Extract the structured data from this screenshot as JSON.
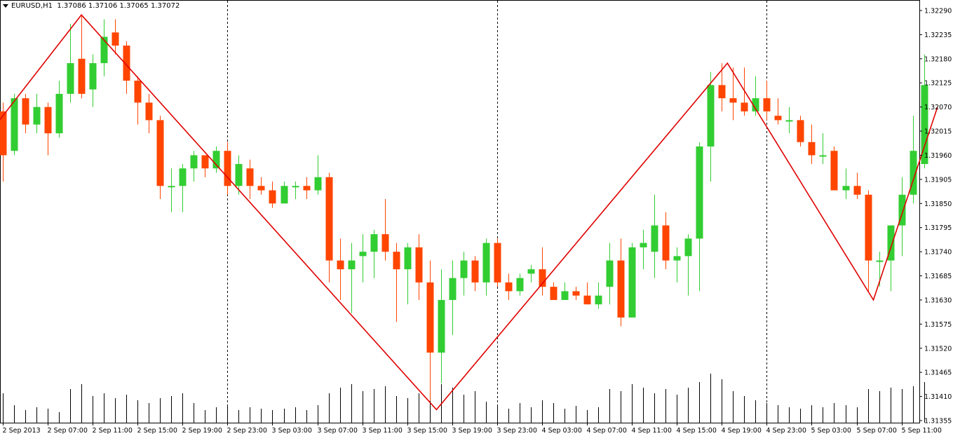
{
  "window": {
    "symbol_line": "EURUSD,H1",
    "ohlc_line": "1.37086 1.37106 1.37065 1.37072"
  },
  "colors": {
    "bull": "#32CD32",
    "bear": "#FF4500",
    "zigzag": "#E00000",
    "grid_separator": "#000000",
    "volume": "#000000"
  },
  "chart_data": {
    "type": "candlestick",
    "title": "EURUSD,H1",
    "y_axis": {
      "ylim": [
        1.3133,
        1.3232
      ],
      "tick_labels": [
        "1.32290",
        "1.32235",
        "1.32180",
        "1.32125",
        "1.32070",
        "1.32015",
        "1.31960",
        "1.31905",
        "1.31850",
        "1.31795",
        "1.31740",
        "1.31685",
        "1.31630",
        "1.31575",
        "1.31520",
        "1.31465",
        "1.31410",
        "1.31355"
      ]
    },
    "x_axis": {
      "tick_labels": [
        "2 Sep 2013",
        "2 Sep 07:00",
        "2 Sep 11:00",
        "2 Sep 15:00",
        "2 Sep 19:00",
        "2 Sep 23:00",
        "3 Sep 03:00",
        "3 Sep 07:00",
        "3 Sep 11:00",
        "3 Sep 15:00",
        "3 Sep 19:00",
        "3 Sep 23:00",
        "4 Sep 03:00",
        "4 Sep 07:00",
        "4 Sep 11:00",
        "4 Sep 15:00",
        "4 Sep 19:00",
        "4 Sep 23:00",
        "5 Sep 03:00",
        "5 Sep 07:00",
        "5 Sep 11:00"
      ]
    },
    "day_separators": [
      "2 Sep 23:00",
      "3 Sep 23:00",
      "4 Sep 23:00"
    ],
    "candles": [
      {
        "o": 1.3206,
        "h": 1.3208,
        "l": 1.319,
        "c": 1.3196
      },
      {
        "o": 1.3197,
        "h": 1.321,
        "l": 1.3196,
        "c": 1.3209
      },
      {
        "o": 1.3209,
        "h": 1.321,
        "l": 1.3201,
        "c": 1.3203
      },
      {
        "o": 1.3203,
        "h": 1.321,
        "l": 1.3201,
        "c": 1.3207
      },
      {
        "o": 1.3207,
        "h": 1.3208,
        "l": 1.3196,
        "c": 1.3201
      },
      {
        "o": 1.3201,
        "h": 1.3213,
        "l": 1.32,
        "c": 1.321
      },
      {
        "o": 1.321,
        "h": 1.3226,
        "l": 1.3208,
        "c": 1.3217
      },
      {
        "o": 1.3218,
        "h": 1.3228,
        "l": 1.3209,
        "c": 1.321
      },
      {
        "o": 1.3211,
        "h": 1.3219,
        "l": 1.3207,
        "c": 1.3217
      },
      {
        "o": 1.3217,
        "h": 1.3227,
        "l": 1.3214,
        "c": 1.3223
      },
      {
        "o": 1.3224,
        "h": 1.3227,
        "l": 1.3219,
        "c": 1.3221
      },
      {
        "o": 1.3221,
        "h": 1.3222,
        "l": 1.321,
        "c": 1.3213
      },
      {
        "o": 1.3213,
        "h": 1.3214,
        "l": 1.3203,
        "c": 1.3208
      },
      {
        "o": 1.3208,
        "h": 1.321,
        "l": 1.3201,
        "c": 1.3204
      },
      {
        "o": 1.3204,
        "h": 1.3205,
        "l": 1.3186,
        "c": 1.3189
      },
      {
        "o": 1.3189,
        "h": 1.3193,
        "l": 1.3183,
        "c": 1.3189
      },
      {
        "o": 1.3189,
        "h": 1.3194,
        "l": 1.3183,
        "c": 1.3193
      },
      {
        "o": 1.3193,
        "h": 1.3197,
        "l": 1.319,
        "c": 1.3196
      },
      {
        "o": 1.3196,
        "h": 1.3196,
        "l": 1.3191,
        "c": 1.3193
      },
      {
        "o": 1.3193,
        "h": 1.3198,
        "l": 1.3192,
        "c": 1.3197
      },
      {
        "o": 1.3197,
        "h": 1.3199,
        "l": 1.3187,
        "c": 1.3189
      },
      {
        "o": 1.3189,
        "h": 1.3196,
        "l": 1.3187,
        "c": 1.3194
      },
      {
        "o": 1.3193,
        "h": 1.3195,
        "l": 1.3186,
        "c": 1.3189
      },
      {
        "o": 1.3189,
        "h": 1.3191,
        "l": 1.3187,
        "c": 1.3188
      },
      {
        "o": 1.3188,
        "h": 1.319,
        "l": 1.3184,
        "c": 1.3185
      },
      {
        "o": 1.3185,
        "h": 1.319,
        "l": 1.3185,
        "c": 1.3189
      },
      {
        "o": 1.3189,
        "h": 1.319,
        "l": 1.3186,
        "c": 1.3189
      },
      {
        "o": 1.3189,
        "h": 1.3191,
        "l": 1.3186,
        "c": 1.3188
      },
      {
        "o": 1.3188,
        "h": 1.3196,
        "l": 1.3187,
        "c": 1.3191
      },
      {
        "o": 1.3191,
        "h": 1.3192,
        "l": 1.3167,
        "c": 1.3172
      },
      {
        "o": 1.3172,
        "h": 1.3177,
        "l": 1.3163,
        "c": 1.317
      },
      {
        "o": 1.317,
        "h": 1.3176,
        "l": 1.316,
        "c": 1.3172
      },
      {
        "o": 1.3173,
        "h": 1.3178,
        "l": 1.3167,
        "c": 1.3174
      },
      {
        "o": 1.3174,
        "h": 1.3179,
        "l": 1.3168,
        "c": 1.3178
      },
      {
        "o": 1.3178,
        "h": 1.3186,
        "l": 1.3172,
        "c": 1.3174
      },
      {
        "o": 1.3174,
        "h": 1.3176,
        "l": 1.3158,
        "c": 1.317
      },
      {
        "o": 1.317,
        "h": 1.3176,
        "l": 1.3162,
        "c": 1.3175
      },
      {
        "o": 1.3175,
        "h": 1.3178,
        "l": 1.3163,
        "c": 1.3167
      },
      {
        "o": 1.3167,
        "h": 1.3172,
        "l": 1.314,
        "c": 1.3151
      },
      {
        "o": 1.3151,
        "h": 1.317,
        "l": 1.3144,
        "c": 1.3163
      },
      {
        "o": 1.3163,
        "h": 1.3172,
        "l": 1.3155,
        "c": 1.3168
      },
      {
        "o": 1.3168,
        "h": 1.3174,
        "l": 1.3164,
        "c": 1.3172
      },
      {
        "o": 1.3172,
        "h": 1.3173,
        "l": 1.3165,
        "c": 1.3167
      },
      {
        "o": 1.3167,
        "h": 1.3177,
        "l": 1.3164,
        "c": 1.3176
      },
      {
        "o": 1.3176,
        "h": 1.3177,
        "l": 1.3166,
        "c": 1.3167
      },
      {
        "o": 1.3167,
        "h": 1.3169,
        "l": 1.3163,
        "c": 1.3165
      },
      {
        "o": 1.3165,
        "h": 1.3169,
        "l": 1.3164,
        "c": 1.3168
      },
      {
        "o": 1.3169,
        "h": 1.3171,
        "l": 1.3167,
        "c": 1.317
      },
      {
        "o": 1.317,
        "h": 1.3175,
        "l": 1.3164,
        "c": 1.3166
      },
      {
        "o": 1.3166,
        "h": 1.3167,
        "l": 1.3163,
        "c": 1.3163
      },
      {
        "o": 1.3163,
        "h": 1.3167,
        "l": 1.3163,
        "c": 1.3165
      },
      {
        "o": 1.3165,
        "h": 1.3166,
        "l": 1.3163,
        "c": 1.3164
      },
      {
        "o": 1.3164,
        "h": 1.3167,
        "l": 1.3162,
        "c": 1.3162
      },
      {
        "o": 1.3162,
        "h": 1.3167,
        "l": 1.3161,
        "c": 1.3164
      },
      {
        "o": 1.3166,
        "h": 1.3176,
        "l": 1.3162,
        "c": 1.3172
      },
      {
        "o": 1.3172,
        "h": 1.3177,
        "l": 1.3157,
        "c": 1.3159
      },
      {
        "o": 1.3159,
        "h": 1.3176,
        "l": 1.3159,
        "c": 1.3175
      },
      {
        "o": 1.3175,
        "h": 1.3179,
        "l": 1.317,
        "c": 1.3176
      },
      {
        "o": 1.3174,
        "h": 1.3187,
        "l": 1.3168,
        "c": 1.318
      },
      {
        "o": 1.318,
        "h": 1.3183,
        "l": 1.317,
        "c": 1.3172
      },
      {
        "o": 1.3172,
        "h": 1.3175,
        "l": 1.3167,
        "c": 1.3173
      },
      {
        "o": 1.3173,
        "h": 1.3178,
        "l": 1.3164,
        "c": 1.3177
      },
      {
        "o": 1.3177,
        "h": 1.3199,
        "l": 1.3165,
        "c": 1.3198
      },
      {
        "o": 1.3198,
        "h": 1.3215,
        "l": 1.319,
        "c": 1.3212
      },
      {
        "o": 1.3212,
        "h": 1.3217,
        "l": 1.3206,
        "c": 1.3209
      },
      {
        "o": 1.3209,
        "h": 1.3216,
        "l": 1.3204,
        "c": 1.3208
      },
      {
        "o": 1.3208,
        "h": 1.3216,
        "l": 1.3205,
        "c": 1.3206
      },
      {
        "o": 1.3206,
        "h": 1.3214,
        "l": 1.3205,
        "c": 1.3209
      },
      {
        "o": 1.3209,
        "h": 1.3213,
        "l": 1.3204,
        "c": 1.3206
      },
      {
        "o": 1.3205,
        "h": 1.3209,
        "l": 1.3203,
        "c": 1.3204
      },
      {
        "o": 1.3204,
        "h": 1.3207,
        "l": 1.3201,
        "c": 1.3204
      },
      {
        "o": 1.3204,
        "h": 1.3205,
        "l": 1.3198,
        "c": 1.3199
      },
      {
        "o": 1.3199,
        "h": 1.3203,
        "l": 1.3194,
        "c": 1.3196
      },
      {
        "o": 1.3196,
        "h": 1.3201,
        "l": 1.3194,
        "c": 1.3196
      },
      {
        "o": 1.3197,
        "h": 1.3198,
        "l": 1.3188,
        "c": 1.3188
      },
      {
        "o": 1.3188,
        "h": 1.3193,
        "l": 1.3186,
        "c": 1.3189
      },
      {
        "o": 1.3189,
        "h": 1.3192,
        "l": 1.3186,
        "c": 1.3187
      },
      {
        "o": 1.3187,
        "h": 1.3188,
        "l": 1.3165,
        "c": 1.3172
      },
      {
        "o": 1.3172,
        "h": 1.3174,
        "l": 1.3166,
        "c": 1.3172
      },
      {
        "o": 1.3172,
        "h": 1.318,
        "l": 1.3165,
        "c": 1.318
      },
      {
        "o": 1.318,
        "h": 1.3191,
        "l": 1.3173,
        "c": 1.3187
      },
      {
        "o": 1.3187,
        "h": 1.3205,
        "l": 1.3185,
        "c": 1.3197
      },
      {
        "o": 1.3194,
        "h": 1.3219,
        "l": 1.3193,
        "c": 1.3212
      }
    ],
    "volumes": [
      42,
      25,
      18,
      22,
      20,
      15,
      48,
      55,
      38,
      42,
      35,
      40,
      32,
      28,
      35,
      38,
      42,
      28,
      18,
      22,
      25,
      18,
      22,
      20,
      18,
      20,
      22,
      18,
      25,
      42,
      50,
      55,
      45,
      48,
      52,
      38,
      35,
      42,
      48,
      55,
      50,
      40,
      45,
      30,
      25,
      20,
      28,
      22,
      32,
      28,
      20,
      24,
      18,
      22,
      48,
      45,
      55,
      50,
      42,
      48,
      40,
      50,
      58,
      70,
      62,
      45,
      38,
      32,
      28,
      25,
      22,
      20,
      25,
      22,
      28,
      25,
      22,
      48,
      45,
      50,
      48,
      52,
      58
    ],
    "zigzag": [
      {
        "i": -0.6,
        "p": 1.3203
      },
      {
        "i": 7,
        "p": 1.3228
      },
      {
        "i": 38.6,
        "p": 1.3138
      },
      {
        "i": 64.5,
        "p": 1.3217
      },
      {
        "i": 77.5,
        "p": 1.3163
      },
      {
        "i": 83.2,
        "p": 1.3207
      }
    ]
  }
}
